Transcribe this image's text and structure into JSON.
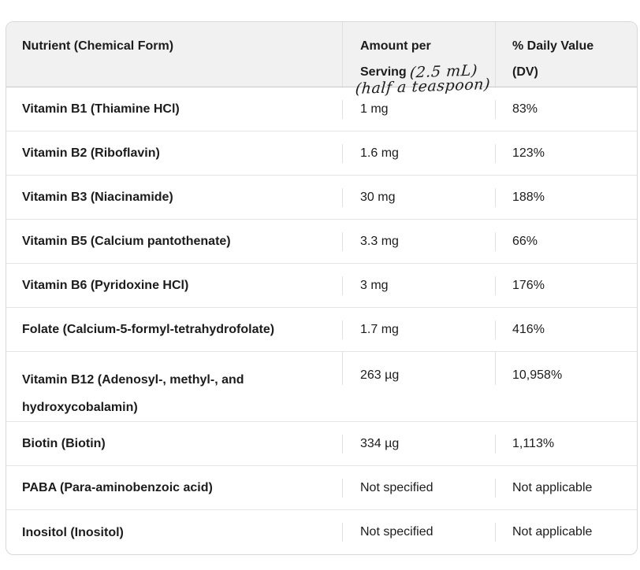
{
  "page": {
    "background": "#ffffff"
  },
  "colors": {
    "header_bg": "#f1f1f1",
    "outer_border": "#d8d8d8",
    "row_divider": "#e5e5e5",
    "header_divider": "#c8c8c8",
    "text": "#1c1c1c"
  },
  "table": {
    "header": {
      "col1": "Nutrient (Chemical Form)",
      "col2_line1": "Amount per",
      "col2_line2": "Serving",
      "col2_script_inline": "(2.5 mL)",
      "col2_script_below": "(half a teaspoon)",
      "col3": "% Daily Value (DV)"
    },
    "rows": [
      {
        "nutrient": "Vitamin B1 (Thiamine HCl)",
        "amount": "1 mg",
        "dv": "83%"
      },
      {
        "nutrient": "Vitamin B2 (Riboflavin)",
        "amount": "1.6 mg",
        "dv": "123%"
      },
      {
        "nutrient": "Vitamin B3 (Niacinamide)",
        "amount": "30 mg",
        "dv": "188%"
      },
      {
        "nutrient": "Vitamin B5 (Calcium pantothenate)",
        "amount": "3.3 mg",
        "dv": "66%"
      },
      {
        "nutrient": "Vitamin B6 (Pyridoxine HCl)",
        "amount": "3 mg",
        "dv": "176%"
      },
      {
        "nutrient": "Folate (Calcium-5-formyl-tetrahydrofolate)",
        "amount": "1.7 mg",
        "dv": "416%"
      },
      {
        "nutrient": "Vitamin B12 (Adenosyl-, methyl-, and hydroxycobalamin)",
        "amount": "263 µg",
        "dv": "10,958%"
      },
      {
        "nutrient": "Biotin (Biotin)",
        "amount": "334 µg",
        "dv": "1,113%"
      },
      {
        "nutrient": "PABA (Para-aminobenzoic acid)",
        "amount": "Not specified",
        "dv": "Not applicable"
      },
      {
        "nutrient": "Inositol (Inositol)",
        "amount": "Not specified",
        "dv": "Not applicable"
      }
    ]
  },
  "chart_data": {
    "type": "table",
    "columns": [
      "Nutrient (Chemical Form)",
      "Amount per Serving (2.5 mL) (half a teaspoon)",
      "% Daily Value (DV)"
    ],
    "rows": [
      [
        "Vitamin B1 (Thiamine HCl)",
        "1 mg",
        "83%"
      ],
      [
        "Vitamin B2 (Riboflavin)",
        "1.6 mg",
        "123%"
      ],
      [
        "Vitamin B3 (Niacinamide)",
        "30 mg",
        "188%"
      ],
      [
        "Vitamin B5 (Calcium pantothenate)",
        "3.3 mg",
        "66%"
      ],
      [
        "Vitamin B6 (Pyridoxine HCl)",
        "3 mg",
        "176%"
      ],
      [
        "Folate (Calcium-5-formyl-tetrahydrofolate)",
        "1.7 mg",
        "416%"
      ],
      [
        "Vitamin B12 (Adenosyl-, methyl-, and hydroxycobalamin)",
        "263 µg",
        "10,958%"
      ],
      [
        "Biotin (Biotin)",
        "334 µg",
        "1,113%"
      ],
      [
        "PABA (Para-aminobenzoic acid)",
        "Not specified",
        "Not applicable"
      ],
      [
        "Inositol (Inositol)",
        "Not specified",
        "Not applicable"
      ]
    ]
  }
}
